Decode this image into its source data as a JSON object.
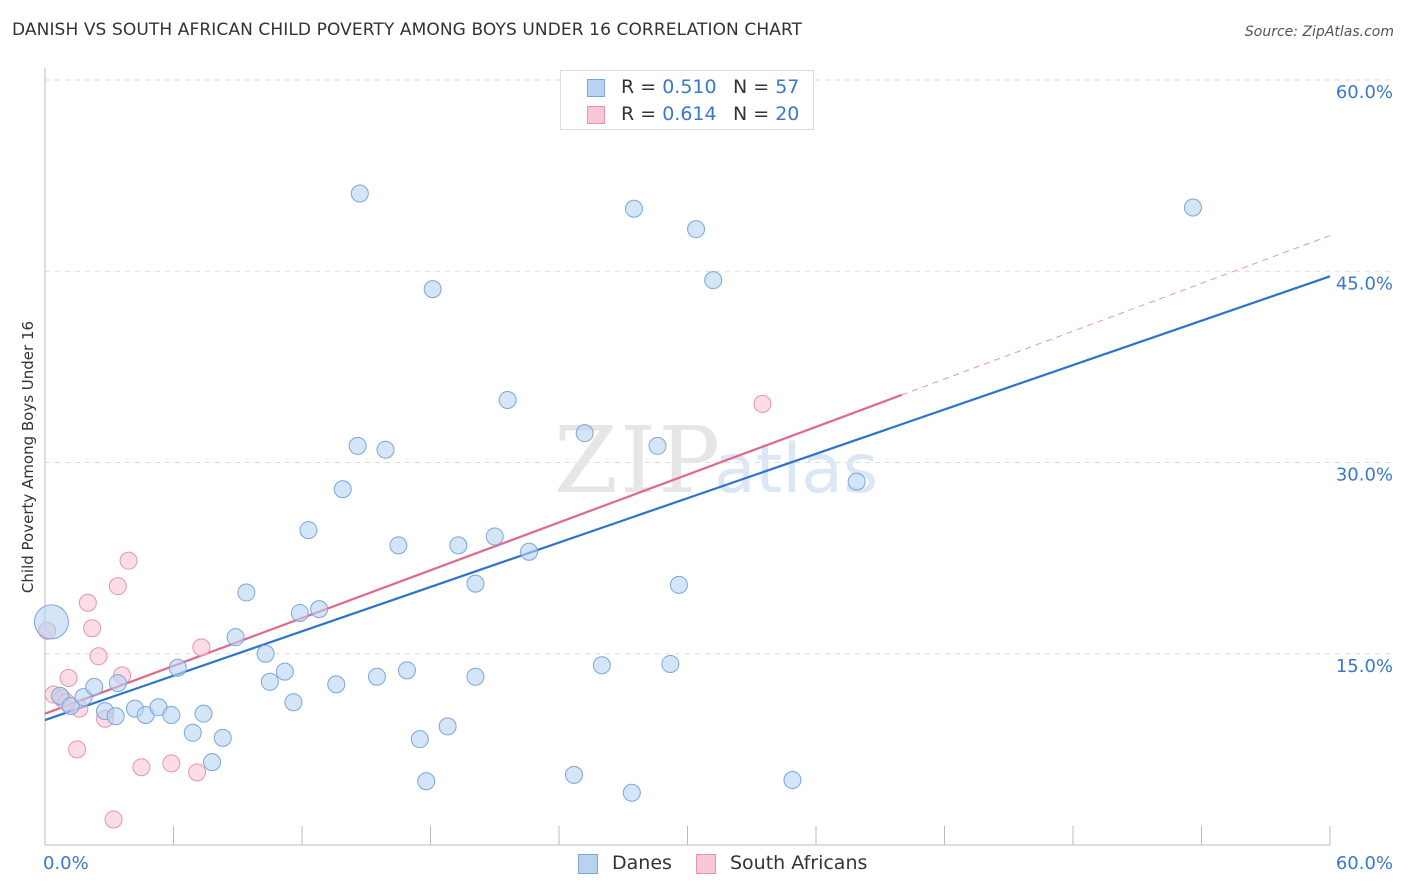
{
  "header": {
    "title": "DANISH VS SOUTH AFRICAN CHILD POVERTY AMONG BOYS UNDER 16 CORRELATION CHART",
    "source": "Source: ZipAtlas.com"
  },
  "legend": {
    "danes": {
      "r_label": "R = ",
      "r_value": "0.510",
      "n_label": "N = ",
      "n_value": "57"
    },
    "south_africans": {
      "r_label": "R = ",
      "r_value": "0.614",
      "n_label": "N = ",
      "n_value": "20"
    }
  },
  "watermark": {
    "part1": "ZIP",
    "part2": "atlas"
  },
  "colors": {
    "danes_fill": "#b8d3f2",
    "danes_stroke": "#7aa6dc",
    "danes_line": "#2f72cc",
    "sa_fill": "#f8c6d4",
    "sa_stroke": "#e994ad",
    "sa_line": "#e0678e",
    "grid": "#dddddd",
    "tick_label": "#3a78c9"
  },
  "chart_data": {
    "type": "scatter",
    "title": "DANISH VS SOUTH AFRICAN CHILD POVERTY AMONG BOYS UNDER 16 CORRELATION CHART",
    "xlabel": "",
    "ylabel": "Child Poverty Among Boys Under 16",
    "xlim": [
      0,
      60
    ],
    "ylim": [
      0,
      60
    ],
    "x_tick_labels": [
      "0.0%",
      "60.0%"
    ],
    "y_ticks": [
      15,
      30,
      45,
      60
    ],
    "y_tick_labels": [
      "15.0%",
      "30.0%",
      "45.0%",
      "60.0%"
    ],
    "grid": true,
    "legend_position": "top-center",
    "series": [
      {
        "name": "Danes",
        "r": 0.51,
        "n": 57,
        "trend": {
          "x": [
            0,
            60
          ],
          "y": [
            9.8,
            44.6
          ]
        },
        "points": [
          [
            0.3,
            17.5
          ],
          [
            0.7,
            11.7
          ],
          [
            1.2,
            10.9
          ],
          [
            1.8,
            11.6
          ],
          [
            2.3,
            12.4
          ],
          [
            2.8,
            10.5
          ],
          [
            3.3,
            10.1
          ],
          [
            3.4,
            12.7
          ],
          [
            4.2,
            10.7
          ],
          [
            4.7,
            10.2
          ],
          [
            5.3,
            10.8
          ],
          [
            5.9,
            10.2
          ],
          [
            6.2,
            13.9
          ],
          [
            6.9,
            8.8
          ],
          [
            7.4,
            10.3
          ],
          [
            7.8,
            6.5
          ],
          [
            8.3,
            8.4
          ],
          [
            8.9,
            16.3
          ],
          [
            9.4,
            19.8
          ],
          [
            10.3,
            15.0
          ],
          [
            10.5,
            12.8
          ],
          [
            11.2,
            13.6
          ],
          [
            11.6,
            11.2
          ],
          [
            11.9,
            18.2
          ],
          [
            12.3,
            24.7
          ],
          [
            12.8,
            18.5
          ],
          [
            13.6,
            12.6
          ],
          [
            13.9,
            27.9
          ],
          [
            14.6,
            31.3
          ],
          [
            14.7,
            51.1
          ],
          [
            15.5,
            13.2
          ],
          [
            15.9,
            31.0
          ],
          [
            16.5,
            23.5
          ],
          [
            16.9,
            13.7
          ],
          [
            17.5,
            8.3
          ],
          [
            17.8,
            5.0
          ],
          [
            18.1,
            43.6
          ],
          [
            18.8,
            9.3
          ],
          [
            19.3,
            23.5
          ],
          [
            20.1,
            13.2
          ],
          [
            20.1,
            20.5
          ],
          [
            21.0,
            24.2
          ],
          [
            21.6,
            34.9
          ],
          [
            22.6,
            23.0
          ],
          [
            24.7,
            5.5
          ],
          [
            25.2,
            32.3
          ],
          [
            26.0,
            14.1
          ],
          [
            27.4,
            4.1
          ],
          [
            27.5,
            49.9
          ],
          [
            28.6,
            31.3
          ],
          [
            29.2,
            14.2
          ],
          [
            29.6,
            20.4
          ],
          [
            30.4,
            48.3
          ],
          [
            31.2,
            44.3
          ],
          [
            34.9,
            5.1
          ],
          [
            37.9,
            28.5
          ],
          [
            53.6,
            50.0
          ]
        ]
      },
      {
        "name": "South Africans",
        "r": 0.614,
        "n": 20,
        "trend": {
          "x": [
            0,
            40
          ],
          "y": [
            10.3,
            35.3
          ]
        },
        "trend_extension": {
          "x": [
            40,
            60
          ],
          "y": [
            35.3,
            47.8
          ]
        },
        "points": [
          [
            0.1,
            16.8
          ],
          [
            0.4,
            11.8
          ],
          [
            0.8,
            11.5
          ],
          [
            1.1,
            13.1
          ],
          [
            1.5,
            7.5
          ],
          [
            1.6,
            10.7
          ],
          [
            2.0,
            19.0
          ],
          [
            2.2,
            17.0
          ],
          [
            2.5,
            14.8
          ],
          [
            2.8,
            9.9
          ],
          [
            3.2,
            2.0
          ],
          [
            3.4,
            20.3
          ],
          [
            3.6,
            13.3
          ],
          [
            3.9,
            22.3
          ],
          [
            4.5,
            6.1
          ],
          [
            5.9,
            6.4
          ],
          [
            7.1,
            5.7
          ],
          [
            7.3,
            15.5
          ],
          [
            33.5,
            34.6
          ],
          [
            1.0,
            11.2
          ]
        ]
      }
    ]
  },
  "bottom_legend": {
    "danes": "Danes",
    "south_africans": "South Africans"
  }
}
